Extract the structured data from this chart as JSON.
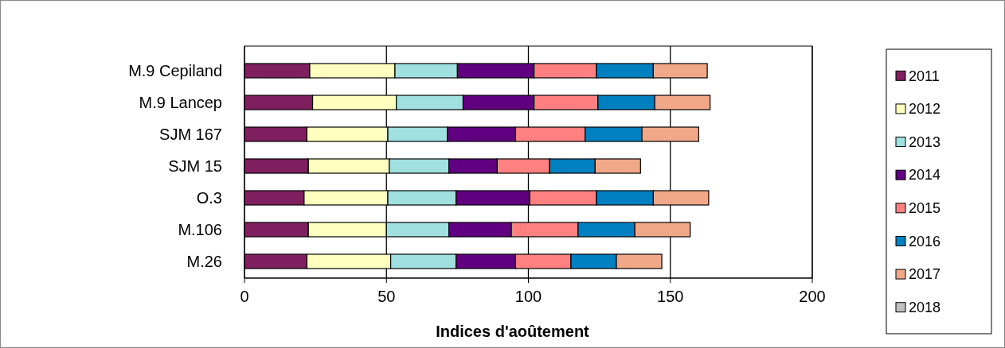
{
  "chart_data": {
    "type": "bar",
    "orientation": "horizontal",
    "stacked": true,
    "xlabel": "Indices d'aoûtement",
    "categories": [
      "M.9 Cepiland",
      "M.9 Lancep",
      "SJM 167",
      "SJM 15",
      "O.3",
      "M.106",
      "M.26"
    ],
    "series": [
      {
        "name": "2011",
        "color": "#7f1f5f",
        "values": [
          23,
          24,
          22,
          22.5,
          21,
          22.5,
          22
        ]
      },
      {
        "name": "2012",
        "color": "#ffffc0",
        "values": [
          30,
          29.5,
          28.5,
          28.5,
          29.5,
          27.5,
          29.5
        ]
      },
      {
        "name": "2013",
        "color": "#a0e0e0",
        "values": [
          22,
          23.5,
          21,
          21,
          24,
          22,
          23
        ]
      },
      {
        "name": "2014",
        "color": "#600080",
        "values": [
          27,
          25,
          24,
          17,
          26,
          22,
          21
        ]
      },
      {
        "name": "2015",
        "color": "#ff8080",
        "values": [
          22,
          22.5,
          24.5,
          18.5,
          23.5,
          23.5,
          19.5
        ]
      },
      {
        "name": "2016",
        "color": "#0080c0",
        "values": [
          20,
          20,
          20,
          16,
          20,
          20,
          16
        ]
      },
      {
        "name": "2017",
        "color": "#f0a888",
        "values": [
          19,
          19.5,
          20,
          16,
          19.5,
          19.5,
          16
        ]
      },
      {
        "name": "2018",
        "color": "#c0c0c0",
        "values": [
          null,
          null,
          null,
          null,
          null,
          null,
          null
        ]
      }
    ],
    "xlim": [
      0,
      200
    ],
    "xticks": [
      0,
      50,
      100,
      150,
      200
    ],
    "grid": "x",
    "legend": "right"
  }
}
